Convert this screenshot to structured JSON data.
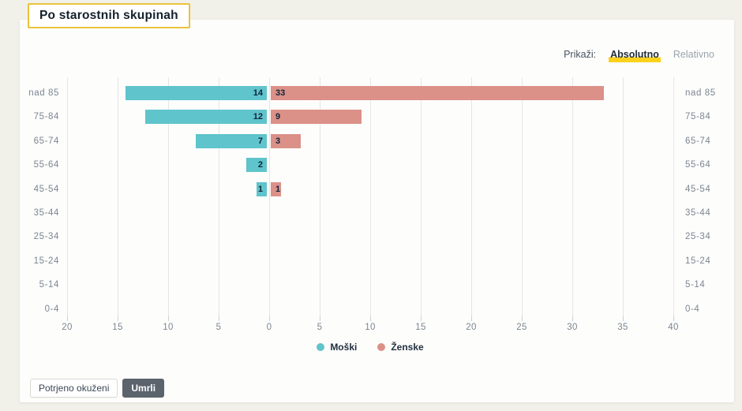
{
  "title": "Po starostnih skupinah",
  "controls": {
    "label": "Prikaži:",
    "options": [
      {
        "label": "Absolutno",
        "selected": true
      },
      {
        "label": "Relativno",
        "selected": false
      }
    ]
  },
  "chart_data": {
    "type": "bar",
    "variant": "diverging-horizontal-pyramid",
    "title": "Po starostnih skupinah",
    "categories": [
      "nad 85",
      "75-84",
      "65-74",
      "55-64",
      "45-54",
      "35-44",
      "25-34",
      "15-24",
      "5-14",
      "0-4"
    ],
    "series": [
      {
        "name": "Moški",
        "side": "left",
        "color": "#5fc4cb",
        "values": [
          14,
          12,
          7,
          2,
          1,
          0,
          0,
          0,
          0,
          0
        ]
      },
      {
        "name": "Ženske",
        "side": "right",
        "color": "#db9188",
        "values": [
          33,
          9,
          3,
          0,
          1,
          0,
          0,
          0,
          0,
          0
        ]
      }
    ],
    "axis": {
      "left_max": 20,
      "right_max": 40,
      "tick_step": 5,
      "tick_labels": [
        "20",
        "15",
        "10",
        "5",
        "0",
        "5",
        "10",
        "15",
        "20",
        "25",
        "30",
        "35",
        "40"
      ]
    },
    "grid": true,
    "legend_position": "bottom",
    "value_labels_shown": true
  },
  "buttons": [
    {
      "label": "Potrjeno okuženi",
      "selected": false
    },
    {
      "label": "Umrli",
      "selected": true
    }
  ],
  "colors": {
    "page_bg": "#f1f0e9",
    "card_bg": "#fdfdfc",
    "title_border": "#ecc23c",
    "highlight_yellow": "#fcd11c",
    "male_bar": "#5fc4cb",
    "female_bar": "#db9188",
    "grid_line": "#e3e6e8",
    "axis_text": "#7b8691",
    "muted_text": "#9aa4ac",
    "value_label": "#0e2439",
    "dark_button_bg": "#5b636c"
  }
}
